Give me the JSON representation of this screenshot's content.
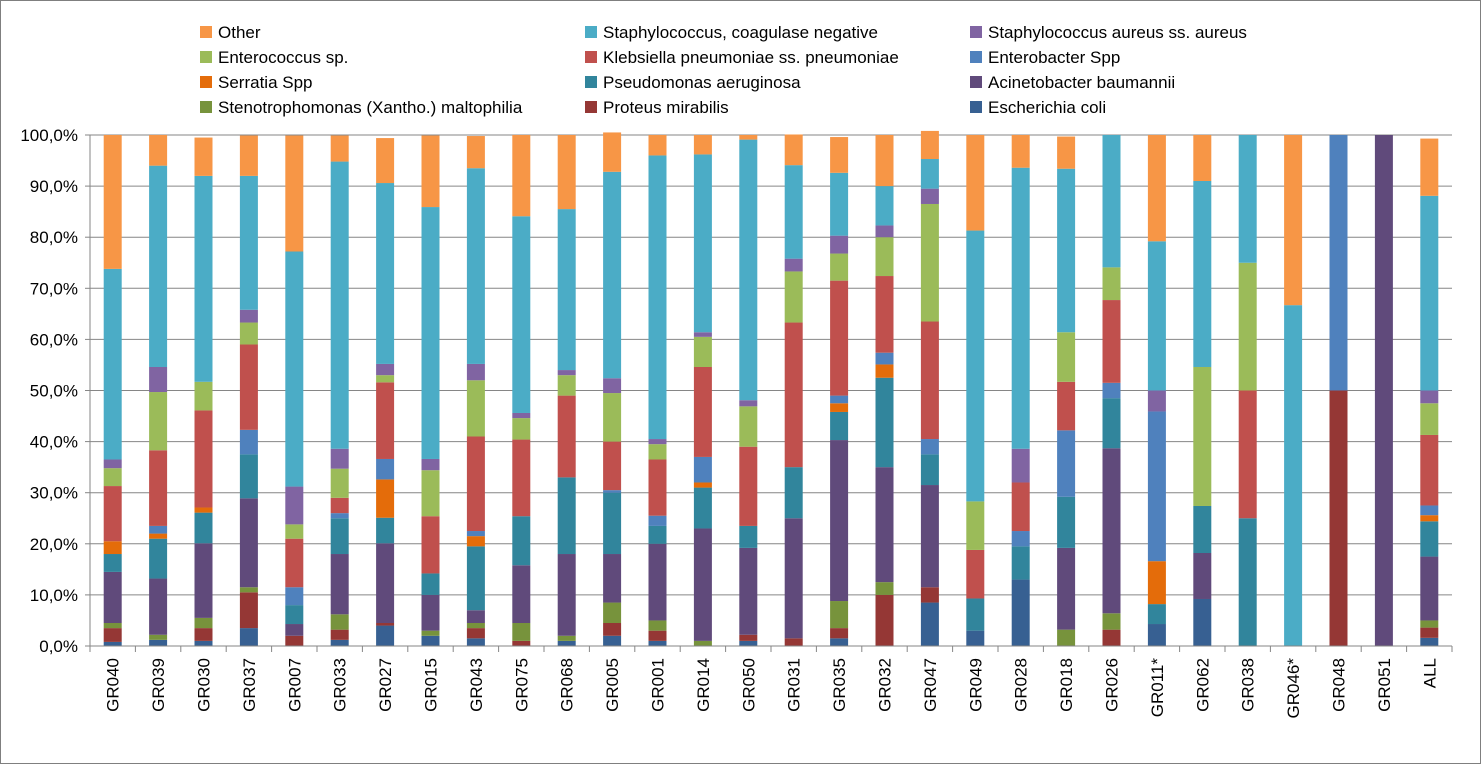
{
  "chart_data": {
    "type": "bar",
    "stacked": true,
    "legend_position": "top",
    "grid": true,
    "ylim": [
      0,
      100
    ],
    "y_ticks": [
      "0,0%",
      "10,0%",
      "20,0%",
      "30,0%",
      "40,0%",
      "50,0%",
      "60,0%",
      "70,0%",
      "80,0%",
      "90,0%",
      "100,0%"
    ],
    "categories": [
      "GR040",
      "GR039",
      "GR030",
      "GR037",
      "GR007",
      "GR033",
      "GR027",
      "GR015",
      "GR043",
      "GR075",
      "GR068",
      "GR005",
      "GR001",
      "GR014",
      "GR050",
      "GR031",
      "GR035",
      "GR032",
      "GR047",
      "GR049",
      "GR028",
      "GR018",
      "GR026",
      "GR011*",
      "GR062",
      "GR038",
      "GR046*",
      "GR048",
      "GR051",
      "ALL"
    ],
    "legend": [
      {
        "label": "Other",
        "color": "#F79646"
      },
      {
        "label": "Staphylococcus, coagulase negative",
        "color": "#4BACC6"
      },
      {
        "label": "Staphylococcus aureus ss. aureus",
        "color": "#8064A2"
      },
      {
        "label": "Enterococcus sp.",
        "color": "#9BBB59"
      },
      {
        "label": "Klebsiella pneumoniae ss. pneumoniae",
        "color": "#C0504D"
      },
      {
        "label": "Enterobacter Spp",
        "color": "#4F81BD"
      },
      {
        "label": "Serratia Spp",
        "color": "#E46C0A"
      },
      {
        "label": "Pseudomonas aeruginosa",
        "color": "#31859C"
      },
      {
        "label": "Acinetobacter baumannii",
        "color": "#604A7B"
      },
      {
        "label": "Stenotrophomonas (Xantho.) maltophilia",
        "color": "#77933C"
      },
      {
        "label": "Proteus mirabilis",
        "color": "#953735"
      },
      {
        "label": "Escherichia coli",
        "color": "#376092"
      }
    ],
    "series": [
      {
        "name": "Escherichia coli",
        "color": "#376092",
        "values": [
          0.8,
          1.2,
          1.0,
          3.5,
          0,
          1.2,
          4.0,
          2.0,
          1.5,
          0,
          1.0,
          2.0,
          1.0,
          0,
          1.0,
          0,
          1.5,
          0,
          8.5,
          3.0,
          13.0,
          0,
          0,
          4.3,
          9.2,
          0,
          0,
          0,
          0,
          1.6
        ]
      },
      {
        "name": "Proteus mirabilis",
        "color": "#953735",
        "values": [
          2.7,
          0,
          2.5,
          7.0,
          2.0,
          2.0,
          0.5,
          0,
          2.0,
          1.0,
          0,
          2.5,
          2.0,
          0,
          1.2,
          1.5,
          2.0,
          10.0,
          3.0,
          0,
          0,
          0,
          3.2,
          0,
          0,
          0,
          0,
          50.0,
          0,
          2.0
        ]
      },
      {
        "name": "Stenotrophomonas (Xantho.) maltophilia",
        "color": "#77933C",
        "values": [
          1.0,
          1.0,
          2.0,
          1.0,
          0,
          3.0,
          0,
          1.0,
          1.0,
          3.5,
          1.0,
          4.0,
          2.0,
          1.0,
          0,
          0,
          5.3,
          2.5,
          0,
          0,
          0,
          3.2,
          3.2,
          0,
          0,
          0,
          0,
          0,
          0,
          1.4
        ]
      },
      {
        "name": "Acinetobacter baumannii",
        "color": "#604A7B",
        "values": [
          10.0,
          11.0,
          14.6,
          17.4,
          2.3,
          11.8,
          15.6,
          7.0,
          2.5,
          11.3,
          16.0,
          9.5,
          15.0,
          22.0,
          17.0,
          23.5,
          31.5,
          22.5,
          20.0,
          0,
          0,
          16.0,
          32.3,
          0,
          9.0,
          0,
          0,
          0,
          100.0,
          12.5
        ]
      },
      {
        "name": "Pseudomonas aeruginosa",
        "color": "#31859C",
        "values": [
          3.5,
          7.8,
          6.0,
          8.6,
          3.7,
          7.0,
          5.0,
          4.2,
          12.5,
          9.6,
          15.0,
          12.0,
          3.5,
          8.0,
          4.3,
          10.0,
          5.5,
          17.5,
          6.0,
          6.3,
          6.5,
          10.0,
          9.8,
          3.9,
          9.2,
          25.0,
          0,
          0,
          0,
          6.9
        ]
      },
      {
        "name": "Serratia Spp",
        "color": "#E46C0A",
        "values": [
          2.5,
          1.0,
          1.0,
          0,
          0,
          0,
          7.5,
          0,
          2.0,
          0,
          0,
          0,
          0,
          1.0,
          0,
          0,
          1.7,
          2.6,
          0,
          0,
          0,
          0,
          0,
          8.4,
          0,
          0,
          0,
          0,
          0,
          1.2
        ]
      },
      {
        "name": "Enterobacter Spp",
        "color": "#4F81BD",
        "values": [
          0,
          1.5,
          0,
          4.8,
          3.5,
          1.0,
          4.0,
          0,
          1.0,
          0,
          0,
          0.5,
          2.0,
          5.0,
          0,
          0,
          1.5,
          2.3,
          3.0,
          0,
          3.0,
          13.0,
          3.0,
          29.3,
          0,
          0,
          0,
          50.0,
          0,
          1.9
        ]
      },
      {
        "name": "Klebsiella pneumoniae ss. pneumoniae",
        "color": "#C0504D",
        "values": [
          10.8,
          14.8,
          19.0,
          16.7,
          9.5,
          3.0,
          15.0,
          11.2,
          18.5,
          15.0,
          16.0,
          9.5,
          11.0,
          17.6,
          15.5,
          28.3,
          22.5,
          15.0,
          23.0,
          9.5,
          9.5,
          9.5,
          16.2,
          0,
          0,
          25.0,
          0,
          0,
          0,
          13.8
        ]
      },
      {
        "name": "Enterococcus sp.",
        "color": "#9BBB59",
        "values": [
          3.5,
          11.4,
          5.6,
          4.3,
          2.8,
          5.7,
          1.4,
          9.0,
          11.0,
          4.2,
          4.0,
          9.5,
          3.0,
          5.9,
          7.9,
          10.0,
          5.3,
          7.6,
          23.0,
          9.5,
          0,
          9.7,
          6.4,
          0,
          27.2,
          25.0,
          0,
          0,
          0,
          6.2
        ]
      },
      {
        "name": "Staphylococcus aureus ss. aureus",
        "color": "#8064A2",
        "values": [
          1.7,
          4.9,
          0,
          2.5,
          7.4,
          3.9,
          2.2,
          2.2,
          3.2,
          1.0,
          1.0,
          2.9,
          1.0,
          0.9,
          1.2,
          2.5,
          3.5,
          2.3,
          3.0,
          0,
          6.6,
          0,
          0,
          4.1,
          0,
          0,
          0,
          0,
          0,
          2.5
        ]
      },
      {
        "name": "Staphylococcus, coagulase negative",
        "color": "#4BACC6",
        "values": [
          37.3,
          39.4,
          40.3,
          26.2,
          46.0,
          56.2,
          35.4,
          49.3,
          38.3,
          38.5,
          31.5,
          40.4,
          55.5,
          34.8,
          51.0,
          18.3,
          12.3,
          7.7,
          5.8,
          53.0,
          55.0,
          32.0,
          25.9,
          29.2,
          36.4,
          25.0,
          66.7,
          0,
          0,
          38.1
        ]
      },
      {
        "name": "Other",
        "color": "#F79646",
        "values": [
          26.2,
          6.0,
          7.5,
          7.9,
          22.7,
          5.1,
          8.8,
          14.0,
          6.3,
          15.9,
          14.5,
          7.7,
          4.0,
          3.8,
          0.9,
          6.0,
          7.0,
          10.0,
          5.5,
          18.7,
          6.4,
          6.3,
          0,
          20.8,
          9.0,
          0,
          33.3,
          0,
          0,
          11.2
        ]
      }
    ]
  }
}
